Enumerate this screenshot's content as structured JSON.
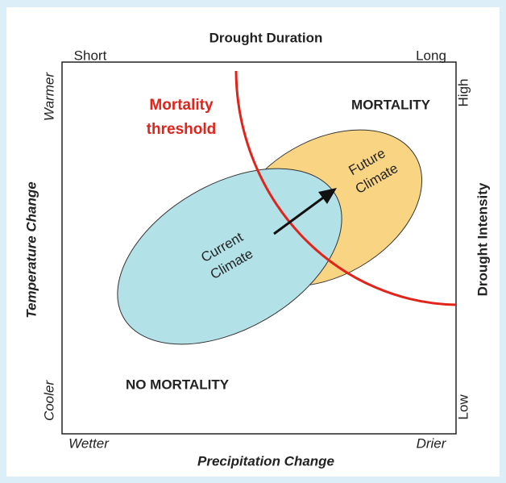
{
  "title": "Drought Duration",
  "top_left": "Short",
  "top_right": "Long",
  "left_axis": {
    "label": "Temperature Change",
    "top": "Warmer",
    "bottom": "Cooler"
  },
  "right_axis": {
    "label": "Drought Intensity",
    "top": "High",
    "bottom": "Low"
  },
  "bottom_axis": {
    "label": "Precipitation Change",
    "left": "Wetter",
    "right": "Drier"
  },
  "threshold": [
    "Mortality",
    "threshold"
  ],
  "regions": {
    "mortality": "MORTALITY",
    "no_mortality": "NO MORTALITY"
  },
  "current_climate": [
    "Current",
    "Climate"
  ],
  "future_climate": [
    "Future",
    "Climate"
  ]
}
